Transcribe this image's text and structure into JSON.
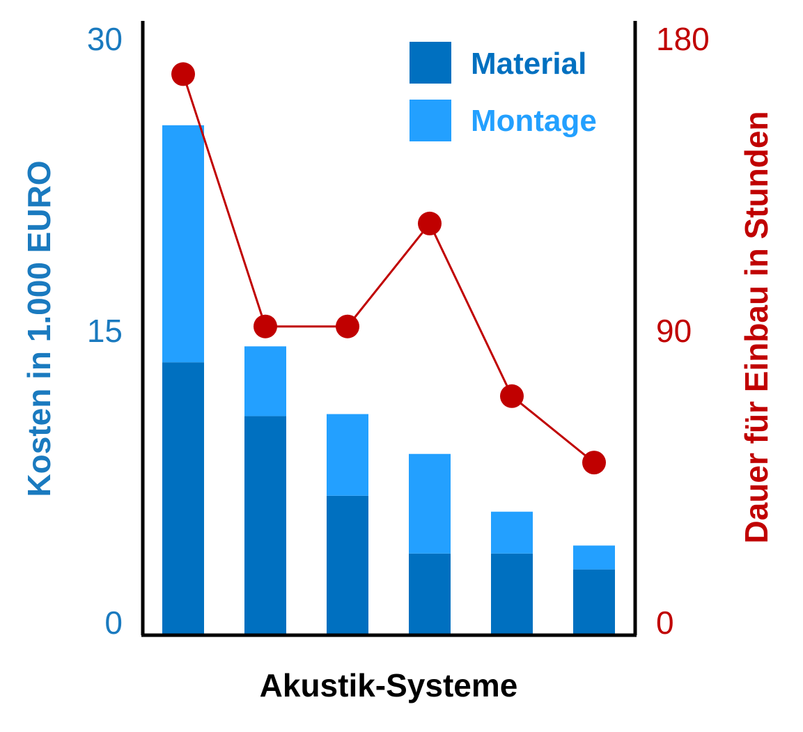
{
  "chart_data": {
    "type": "bar",
    "stacked": true,
    "xlabel": "Akustik-Systeme",
    "categories": [
      "",
      "",
      "",
      "",
      "",
      ""
    ],
    "y_left": {
      "label": "Kosten in 1.000 EURO",
      "range": [
        0,
        30
      ],
      "ticks": [
        "0",
        "15",
        "30"
      ],
      "color": "#1a7abf"
    },
    "y_right": {
      "label": "Dauer für Einbau in Stunden",
      "range": [
        0,
        180
      ],
      "ticks": [
        "0",
        "90",
        "180"
      ],
      "color": "#c00000"
    },
    "series": [
      {
        "name": "Material",
        "type": "bar",
        "axis": "left",
        "color": "#0070c0",
        "values": [
          13.7,
          11.0,
          7.0,
          4.1,
          4.1,
          3.3
        ]
      },
      {
        "name": "Montage",
        "type": "bar",
        "axis": "left",
        "color": "#23a0ff",
        "values": [
          11.9,
          3.5,
          4.1,
          5.0,
          2.1,
          1.2
        ]
      },
      {
        "name": "",
        "type": "line",
        "axis": "right",
        "color": "#c00000",
        "values": [
          169,
          93,
          93,
          124,
          72,
          52
        ]
      }
    ],
    "legend": {
      "position": "top-right",
      "entries": [
        "Material",
        "Montage"
      ]
    },
    "grid": false
  }
}
